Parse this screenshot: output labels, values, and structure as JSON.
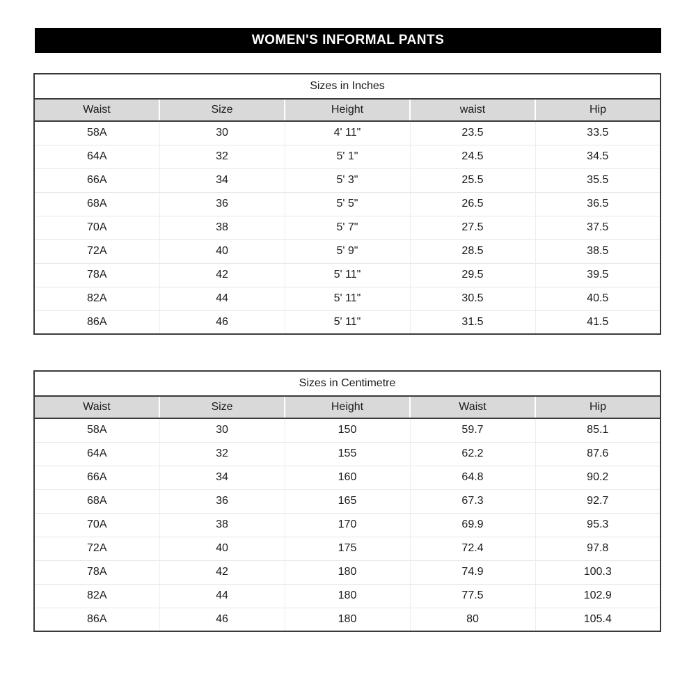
{
  "page_title": "WOMEN'S INFORMAL PANTS",
  "colors": {
    "banner_bg": "#000000",
    "banner_text": "#ffffff",
    "header_row_bg": "#d9d9d9",
    "border_dark": "#3a3a3a",
    "grid_light": "#e7e7e7"
  },
  "tables": [
    {
      "id": "sizes-in-inches",
      "title": "Sizes in Inches",
      "headers": [
        "Waist",
        "Size",
        "Height",
        "waist",
        "Hip"
      ],
      "rows": [
        [
          "58A",
          "30",
          "4' 11\"",
          "23.5",
          "33.5"
        ],
        [
          "64A",
          "32",
          "5' 1\"",
          "24.5",
          "34.5"
        ],
        [
          "66A",
          "34",
          "5' 3\"",
          "25.5",
          "35.5"
        ],
        [
          "68A",
          "36",
          "5' 5\"",
          "26.5",
          "36.5"
        ],
        [
          "70A",
          "38",
          "5' 7\"",
          "27.5",
          "37.5"
        ],
        [
          "72A",
          "40",
          "5' 9\"",
          "28.5",
          "38.5"
        ],
        [
          "78A",
          "42",
          "5' 11\"",
          "29.5",
          "39.5"
        ],
        [
          "82A",
          "44",
          "5' 11\"",
          "30.5",
          "40.5"
        ],
        [
          "86A",
          "46",
          "5' 11\"",
          "31.5",
          "41.5"
        ]
      ]
    },
    {
      "id": "sizes-in-centimetre",
      "title": "Sizes in Centimetre",
      "headers": [
        "Waist",
        "Size",
        "Height",
        "Waist",
        "Hip"
      ],
      "rows": [
        [
          "58A",
          "30",
          "150",
          "59.7",
          "85.1"
        ],
        [
          "64A",
          "32",
          "155",
          "62.2",
          "87.6"
        ],
        [
          "66A",
          "34",
          "160",
          "64.8",
          "90.2"
        ],
        [
          "68A",
          "36",
          "165",
          "67.3",
          "92.7"
        ],
        [
          "70A",
          "38",
          "170",
          "69.9",
          "95.3"
        ],
        [
          "72A",
          "40",
          "175",
          "72.4",
          "97.8"
        ],
        [
          "78A",
          "42",
          "180",
          "74.9",
          "100.3"
        ],
        [
          "82A",
          "44",
          "180",
          "77.5",
          "102.9"
        ],
        [
          "86A",
          "46",
          "180",
          "80",
          "105.4"
        ]
      ]
    }
  ]
}
